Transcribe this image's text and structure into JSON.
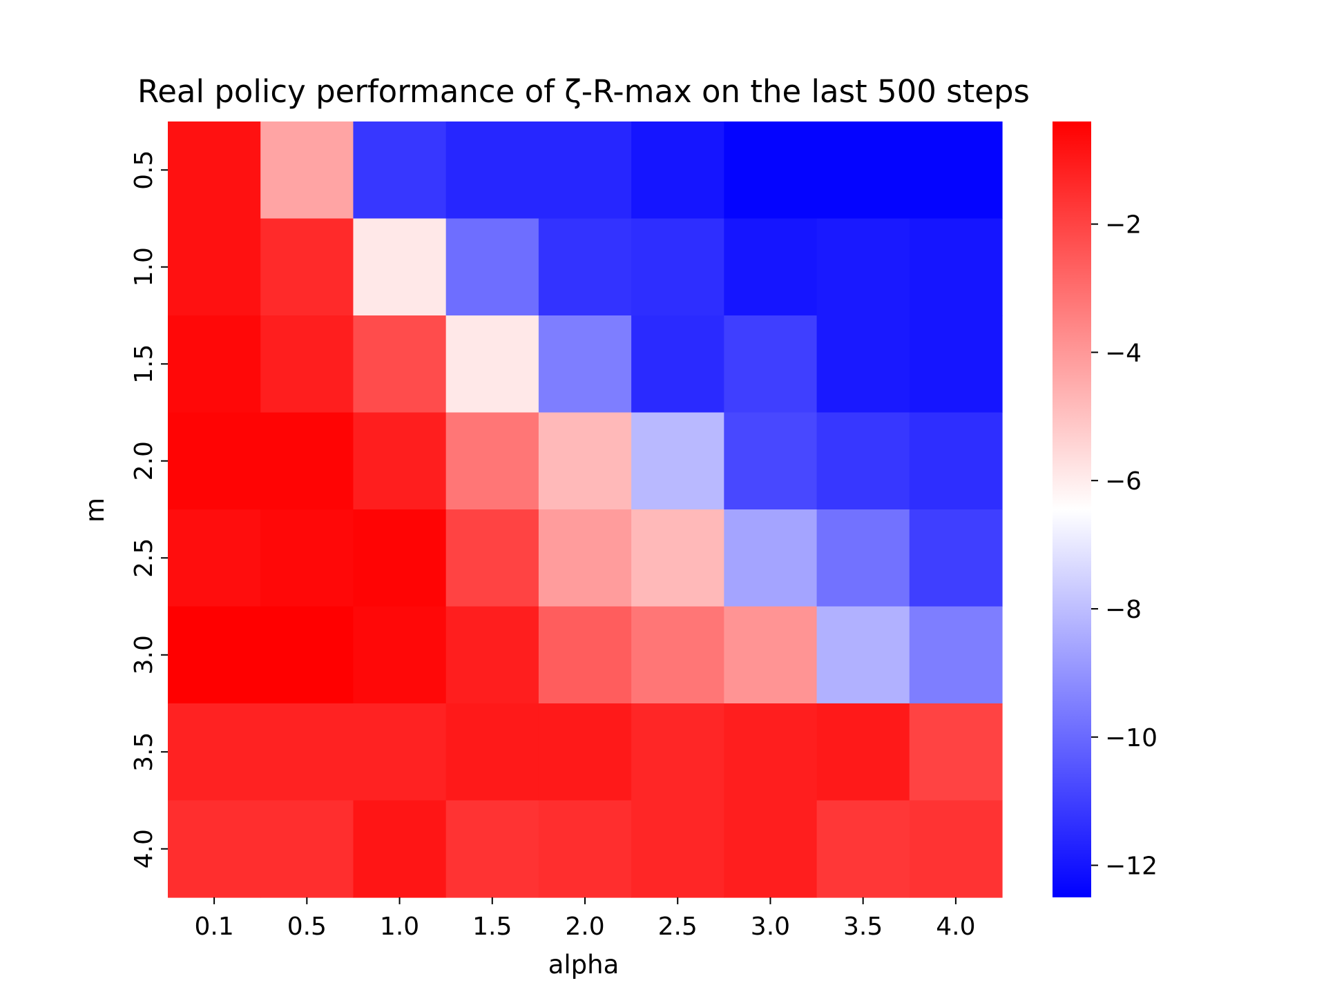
{
  "chart_data": {
    "type": "heatmap",
    "title": "Real policy performance of ζ-R-max on the last 500 steps",
    "xlabel": "alpha",
    "ylabel": "m",
    "x_categories": [
      "0.1",
      "0.5",
      "1.0",
      "1.5",
      "2.0",
      "2.5",
      "3.0",
      "3.5",
      "4.0"
    ],
    "y_categories": [
      "0.5",
      "1.0",
      "1.5",
      "2.0",
      "2.5",
      "3.0",
      "3.5",
      "4.0"
    ],
    "values": [
      [
        -0.8,
        -4.3,
        -11.2,
        -11.6,
        -11.6,
        -12.0,
        -12.4,
        -12.4,
        -12.4
      ],
      [
        -0.8,
        -1.4,
        -5.9,
        -9.9,
        -11.3,
        -11.4,
        -12.0,
        -11.9,
        -12.0
      ],
      [
        -0.6,
        -1.1,
        -2.2,
        -5.9,
        -9.5,
        -11.5,
        -11.0,
        -11.9,
        -12.0
      ],
      [
        -0.5,
        -0.5,
        -1.1,
        -3.2,
        -4.8,
        -8.1,
        -10.8,
        -11.2,
        -11.4
      ],
      [
        -0.7,
        -0.6,
        -0.5,
        -2.0,
        -4.1,
        -4.8,
        -8.6,
        -9.8,
        -11.0
      ],
      [
        -0.4,
        -0.4,
        -0.6,
        -1.1,
        -2.6,
        -3.2,
        -3.9,
        -8.3,
        -9.5
      ],
      [
        -1.2,
        -1.2,
        -1.2,
        -1.0,
        -1.0,
        -1.3,
        -1.1,
        -1.0,
        -2.0
      ],
      [
        -1.5,
        -1.5,
        -0.9,
        -1.6,
        -1.5,
        -1.3,
        -1.1,
        -1.7,
        -1.6
      ]
    ],
    "colorbar": {
      "colormap": "bwr",
      "vmin": -12.5,
      "vmax": -0.4,
      "ticks": [
        -2,
        -4,
        -6,
        -8,
        -10,
        -12
      ],
      "tick_labels": [
        "−2",
        "−4",
        "−6",
        "−8",
        "−10",
        "−12"
      ]
    },
    "grid": false,
    "legend": "none"
  }
}
